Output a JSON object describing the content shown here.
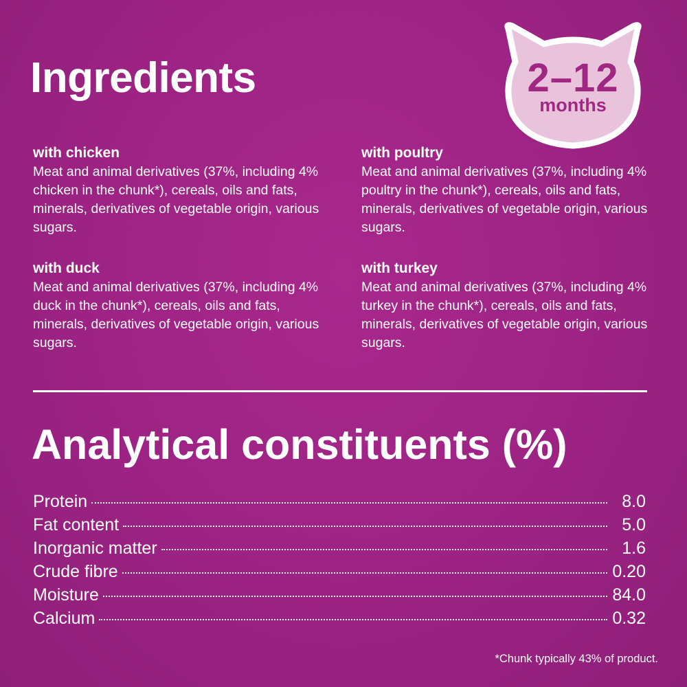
{
  "ingredients": {
    "title": "Ingredients",
    "items": [
      {
        "heading": "with chicken",
        "text": "Meat and animal derivatives (37%, including 4% chicken in the chunk*), cereals, oils and fats, minerals, derivatives of vegetable origin, various sugars."
      },
      {
        "heading": "with poultry",
        "text": "Meat and animal derivatives (37%, including 4% poultry in the chunk*), cereals, oils and fats, minerals, derivatives of vegetable origin, various sugars."
      },
      {
        "heading": "with duck",
        "text": "Meat and animal derivatives (37%, including 4% duck in the chunk*), cereals, oils and fats, minerals, derivatives of vegetable origin, various sugars."
      },
      {
        "heading": "with turkey",
        "text": "Meat and animal derivatives (37%, including 4% turkey in the chunk*), cereals, oils and fats, minerals, derivatives of vegetable origin, various sugars."
      }
    ]
  },
  "badge": {
    "age": "2–12",
    "unit": "months",
    "fill": "#e9c3dc",
    "text_color": "#a02882"
  },
  "analytical": {
    "title": "Analytical constituents (%)",
    "rows": [
      {
        "label": "Protein",
        "value": "8.0"
      },
      {
        "label": "Fat content",
        "value": "5.0"
      },
      {
        "label": "Inorganic matter",
        "value": "1.6"
      },
      {
        "label": "Crude fibre",
        "value": "0.20"
      },
      {
        "label": "Moisture",
        "value": "84.0"
      },
      {
        "label": "Calcium",
        "value": "0.32"
      }
    ]
  },
  "footnote": "*Chunk typically 43% of product.",
  "colors": {
    "background": "#9c2383",
    "text": "#ffffff"
  }
}
